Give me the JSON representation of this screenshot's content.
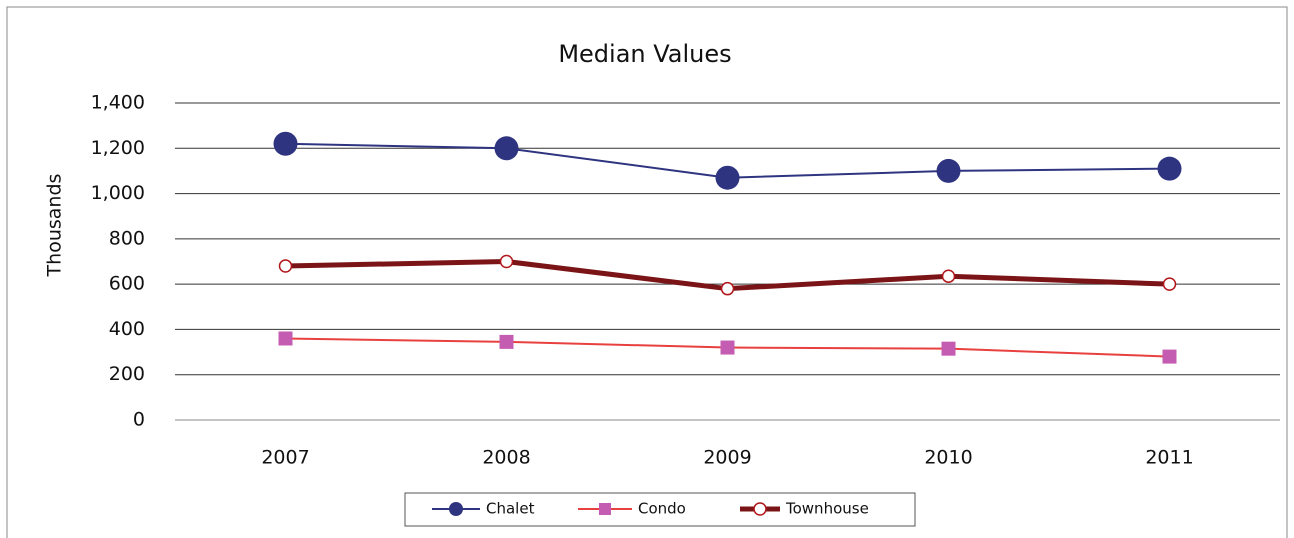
{
  "chart_data": {
    "type": "line",
    "title": "Median Values",
    "y_label": "Thousands",
    "categories": [
      "2007",
      "2008",
      "2009",
      "2010",
      "2011"
    ],
    "series": [
      {
        "name": "Chalet",
        "color": "#2e3480",
        "marker": "circle",
        "marker_color": "#2e3480",
        "values": [
          1220,
          1200,
          1070,
          1100,
          1110
        ]
      },
      {
        "name": "Condo",
        "color": "#e8403f",
        "marker": "square",
        "marker_color": "#c45cb2",
        "values": [
          360,
          345,
          320,
          315,
          280
        ]
      },
      {
        "name": "Townhouse",
        "color": "#7b1416",
        "marker": "open-circle",
        "marker_color": "#b0161a",
        "values": [
          680,
          700,
          580,
          635,
          600
        ]
      }
    ],
    "ylim": [
      0,
      1400
    ],
    "yticks": [
      0,
      200,
      400,
      600,
      800,
      {
        "value": 1000,
        "label": "1,000"
      },
      {
        "value": 1200,
        "label": "1,200"
      },
      {
        "value": 1400,
        "label": "1,400"
      }
    ],
    "grid": true,
    "legend": "bottom"
  }
}
